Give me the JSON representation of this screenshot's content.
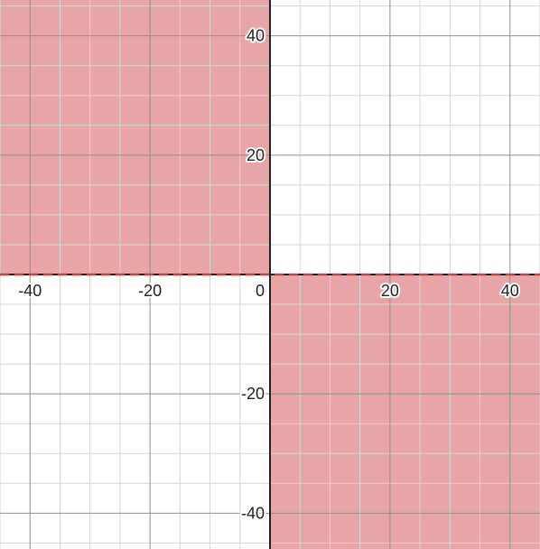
{
  "chart_data": {
    "type": "area",
    "title": "",
    "xlabel": "",
    "ylabel": "",
    "xlim": [
      -45,
      45
    ],
    "ylim": [
      -46,
      46
    ],
    "grid": true,
    "major_step": 20,
    "minor_step": 5,
    "x_ticks": [
      {
        "value": -40,
        "label": "-40"
      },
      {
        "value": -20,
        "label": "-20"
      },
      {
        "value": 0,
        "label": "0"
      },
      {
        "value": 20,
        "label": "20"
      },
      {
        "value": 40,
        "label": "40"
      }
    ],
    "y_ticks": [
      {
        "value": 40,
        "label": "40"
      },
      {
        "value": 20,
        "label": "20"
      },
      {
        "value": -20,
        "label": "-20"
      },
      {
        "value": -40,
        "label": "-40"
      }
    ],
    "shaded_regions": [
      {
        "name": "upper-left",
        "x": [
          -45,
          0
        ],
        "y": [
          0,
          46
        ]
      },
      {
        "name": "lower-right",
        "x": [
          0,
          45
        ],
        "y": [
          -46,
          0
        ]
      }
    ],
    "boundary": {
      "equation": "y = 0",
      "style": "dashed"
    },
    "colors": {
      "fill": "#e8a5a7",
      "boundary": "#c74440",
      "minor_grid": "#d6d6d6",
      "major_grid": "#8f8f8f",
      "axis": "#222222"
    }
  }
}
